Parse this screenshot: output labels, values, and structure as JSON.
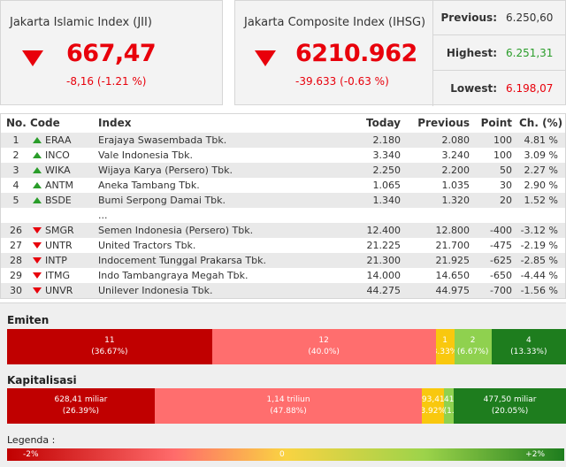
{
  "jii": {
    "title": "Jakarta Islamic Index (JII)",
    "value": "667,47",
    "change": "-8,16 (-1.21 %)"
  },
  "ihsg": {
    "title": "Jakarta Composite Index (IHSG)",
    "value": "6210.962",
    "change": "-39.633 (-0.63 %)"
  },
  "stats": [
    {
      "label": "Previous:",
      "value": "6.250,60",
      "color": "#333333"
    },
    {
      "label": "Highest:",
      "value": "6.251,31",
      "color": "#2a9d2a"
    },
    {
      "label": "Lowest:",
      "value": "6.198,07",
      "color": "#e8000b"
    }
  ],
  "table": {
    "headers": {
      "no": "No.",
      "code": "Code",
      "index": "Index",
      "today": "Today",
      "previous": "Previous",
      "point": "Point",
      "ch": "Ch. (%)"
    },
    "top_rows": [
      {
        "no": "1",
        "dir": "up",
        "code": "ERAA",
        "name": "Erajaya Swasembada Tbk.",
        "today": "2.180",
        "previous": "2.080",
        "point": "100",
        "ch": "4.81 %"
      },
      {
        "no": "2",
        "dir": "up",
        "code": "INCO",
        "name": "Vale Indonesia Tbk.",
        "today": "3.340",
        "previous": "3.240",
        "point": "100",
        "ch": "3.09 %"
      },
      {
        "no": "3",
        "dir": "up",
        "code": "WIKA",
        "name": "Wijaya Karya (Persero) Tbk.",
        "today": "2.250",
        "previous": "2.200",
        "point": "50",
        "ch": "2.27 %"
      },
      {
        "no": "4",
        "dir": "up",
        "code": "ANTM",
        "name": "Aneka Tambang Tbk.",
        "today": "1.065",
        "previous": "1.035",
        "point": "30",
        "ch": "2.90 %"
      },
      {
        "no": "5",
        "dir": "up",
        "code": "BSDE",
        "name": "Bumi Serpong Damai Tbk.",
        "today": "1.340",
        "previous": "1.320",
        "point": "20",
        "ch": "1.52 %"
      }
    ],
    "ellipsis": "...",
    "bottom_rows": [
      {
        "no": "26",
        "dir": "down",
        "code": "SMGR",
        "name": "Semen Indonesia (Persero) Tbk.",
        "today": "12.400",
        "previous": "12.800",
        "point": "-400",
        "ch": "-3.12 %"
      },
      {
        "no": "27",
        "dir": "down",
        "code": "UNTR",
        "name": "United Tractors Tbk.",
        "today": "21.225",
        "previous": "21.700",
        "point": "-475",
        "ch": "-2.19 %"
      },
      {
        "no": "28",
        "dir": "down",
        "code": "INTP",
        "name": "Indocement Tunggal Prakarsa Tbk.",
        "today": "21.300",
        "previous": "21.925",
        "point": "-625",
        "ch": "-2.85 %"
      },
      {
        "no": "29",
        "dir": "down",
        "code": "ITMG",
        "name": "Indo Tambangraya Megah Tbk.",
        "today": "14.000",
        "previous": "14.650",
        "point": "-650",
        "ch": "-4.44 %"
      },
      {
        "no": "30",
        "dir": "down",
        "code": "UNVR",
        "name": "Unilever Indonesia Tbk.",
        "today": "44.275",
        "previous": "44.975",
        "point": "-700",
        "ch": "-1.56 %"
      }
    ]
  },
  "emiten": {
    "title": "Emiten",
    "segments": [
      {
        "top": "11",
        "bottom": "(36.67%)",
        "share": 36.67,
        "color": "#c00000",
        "text_color": "#ffffff"
      },
      {
        "top": "12",
        "bottom": "(40.0%)",
        "share": 40.0,
        "color": "#ff6e6e",
        "text_color": "#ffffff"
      },
      {
        "top": "1",
        "bottom": "(3.33%)",
        "share": 3.33,
        "color": "#f9c80e",
        "text_color": "#ffffff"
      },
      {
        "top": "2",
        "bottom": "(6.67%)",
        "share": 6.67,
        "color": "#8fd14f",
        "text_color": "#ffffff"
      },
      {
        "top": "4",
        "bottom": "(13.33%)",
        "share": 13.33,
        "color": "#1e7d1e",
        "text_color": "#ffffff"
      }
    ]
  },
  "kapitalisasi": {
    "title": "Kapitalisasi",
    "segments": [
      {
        "top": "628,41 miliar",
        "bottom": "(26.39%)",
        "share": 26.39,
        "color": "#c00000",
        "text_color": "#ffffff"
      },
      {
        "top": "1,14 triliun",
        "bottom": "(47.88%)",
        "share": 47.88,
        "color": "#ff6e6e",
        "text_color": "#ffffff"
      },
      {
        "top": "93,41",
        "bottom": "(3.92%)",
        "share": 3.92,
        "color": "#f9c80e",
        "text_color": "#ffffff"
      },
      {
        "top": "41",
        "bottom": "(1.",
        "share": 1.76,
        "color": "#8fd14f",
        "text_color": "#ffffff"
      },
      {
        "top": "477,50 miliar",
        "bottom": "(20.05%)",
        "share": 20.05,
        "color": "#1e7d1e",
        "text_color": "#ffffff"
      }
    ]
  },
  "legend": {
    "title": "Legenda :",
    "min": "-2%",
    "mid": "0",
    "max": "+2%"
  }
}
